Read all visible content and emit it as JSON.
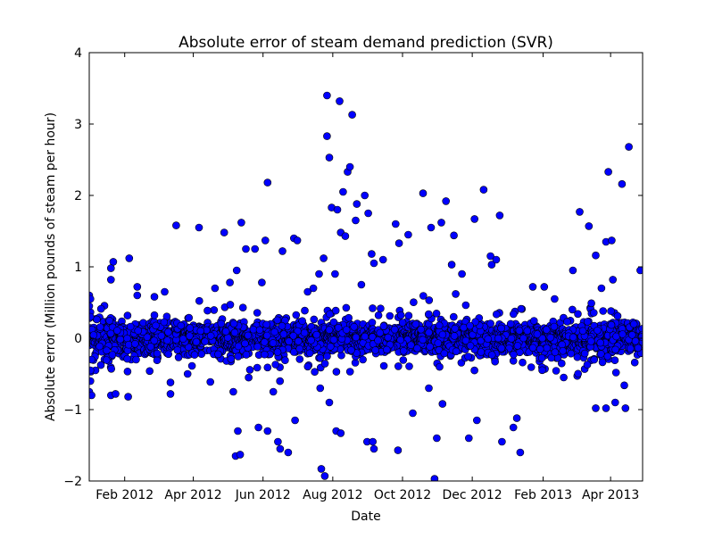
{
  "chart_data": {
    "type": "scatter",
    "title": "Absolute error of steam demand prediction (SVR)",
    "xlabel": "Date",
    "ylabel": "Absolute error (Million pounds of steam per hour)",
    "x_type": "date",
    "xlim": [
      "2012-01-01",
      "2013-04-29"
    ],
    "ylim": [
      -2,
      4
    ],
    "grid": false,
    "legend": "none",
    "marker_color": "#0000ff",
    "marker_edge_color": "#000000",
    "x_ticks": [
      {
        "date": "2012-02-01",
        "label": "Feb 2012"
      },
      {
        "date": "2012-04-01",
        "label": "Apr 2012"
      },
      {
        "date": "2012-06-01",
        "label": "Jun 2012"
      },
      {
        "date": "2012-08-01",
        "label": "Aug 2012"
      },
      {
        "date": "2012-10-01",
        "label": "Oct 2012"
      },
      {
        "date": "2012-12-01",
        "label": "Dec 2012"
      },
      {
        "date": "2013-02-01",
        "label": "Feb 2013"
      },
      {
        "date": "2013-04-01",
        "label": "Apr 2013"
      }
    ],
    "y_ticks": [
      {
        "value": -2,
        "label": "−2"
      },
      {
        "value": -1,
        "label": "−1"
      },
      {
        "value": 0,
        "label": "0"
      },
      {
        "value": 1,
        "label": "1"
      },
      {
        "value": 2,
        "label": "2"
      },
      {
        "value": 3,
        "label": "3"
      },
      {
        "value": 4,
        "label": "4"
      }
    ],
    "series": [
      {
        "points": [
          [
            "2012-01-01",
            0.6
          ],
          [
            "2012-01-01",
            0.45
          ],
          [
            "2012-01-02",
            0.3
          ],
          [
            "2012-01-01",
            -0.75
          ],
          [
            "2012-01-02",
            -0.6
          ],
          [
            "2012-01-02",
            -0.45
          ],
          [
            "2012-01-03",
            -0.3
          ],
          [
            "2012-01-02",
            0.55
          ],
          [
            "2012-01-03",
            -0.8
          ],
          [
            "2012-01-22",
            1.07
          ],
          [
            "2012-01-20",
            0.98
          ],
          [
            "2012-01-20",
            0.82
          ],
          [
            "2012-01-20",
            -0.8
          ],
          [
            "2012-01-24",
            -0.78
          ],
          [
            "2012-02-05",
            1.12
          ],
          [
            "2012-02-04",
            -0.82
          ],
          [
            "2012-02-12",
            0.6
          ],
          [
            "2012-02-12",
            0.72
          ],
          [
            "2012-02-27",
            0.58
          ],
          [
            "2012-03-07",
            0.65
          ],
          [
            "2012-03-12",
            -0.78
          ],
          [
            "2012-03-12",
            -0.62
          ],
          [
            "2012-03-17",
            1.58
          ],
          [
            "2012-03-27",
            -0.5
          ],
          [
            "2012-04-06",
            1.55
          ],
          [
            "2012-04-20",
            0.7
          ],
          [
            "2012-04-28",
            1.48
          ],
          [
            "2012-05-03",
            0.78
          ],
          [
            "2012-05-06",
            -0.75
          ],
          [
            "2012-05-08",
            -1.65
          ],
          [
            "2012-05-09",
            0.95
          ],
          [
            "2012-05-10",
            -1.3
          ],
          [
            "2012-05-12",
            -1.63
          ],
          [
            "2012-05-13",
            1.62
          ],
          [
            "2012-05-17",
            1.25
          ],
          [
            "2012-05-25",
            1.25
          ],
          [
            "2012-05-28",
            -1.25
          ],
          [
            "2012-05-31",
            0.78
          ],
          [
            "2012-06-03",
            1.37
          ],
          [
            "2012-06-05",
            2.18
          ],
          [
            "2012-06-05",
            -1.3
          ],
          [
            "2012-06-10",
            -0.75
          ],
          [
            "2012-06-14",
            -1.45
          ],
          [
            "2012-06-16",
            -1.55
          ],
          [
            "2012-06-18",
            1.22
          ],
          [
            "2012-06-23",
            -1.6
          ],
          [
            "2012-06-28",
            1.4
          ],
          [
            "2012-07-01",
            1.37
          ],
          [
            "2012-06-29",
            -1.15
          ],
          [
            "2012-07-10",
            0.65
          ],
          [
            "2012-07-15",
            0.7
          ],
          [
            "2012-07-20",
            0.9
          ],
          [
            "2012-07-21",
            -0.7
          ],
          [
            "2012-07-24",
            1.12
          ],
          [
            "2012-07-22",
            -1.83
          ],
          [
            "2012-07-25",
            -1.93
          ],
          [
            "2012-07-27",
            3.4
          ],
          [
            "2012-07-27",
            2.83
          ],
          [
            "2012-07-29",
            2.53
          ],
          [
            "2012-07-31",
            1.83
          ],
          [
            "2012-07-29",
            -0.9
          ],
          [
            "2012-08-03",
            0.9
          ],
          [
            "2012-08-04",
            -1.3
          ],
          [
            "2012-08-05",
            1.8
          ],
          [
            "2012-08-07",
            3.32
          ],
          [
            "2012-08-08",
            1.48
          ],
          [
            "2012-08-08",
            -1.33
          ],
          [
            "2012-08-10",
            2.05
          ],
          [
            "2012-08-12",
            1.43
          ],
          [
            "2012-08-14",
            2.33
          ],
          [
            "2012-08-16",
            2.4
          ],
          [
            "2012-08-18",
            3.13
          ],
          [
            "2012-08-21",
            1.65
          ],
          [
            "2012-08-22",
            1.88
          ],
          [
            "2012-08-26",
            0.75
          ],
          [
            "2012-08-29",
            2.0
          ],
          [
            "2012-09-01",
            1.75
          ],
          [
            "2012-08-31",
            -1.45
          ],
          [
            "2012-09-04",
            1.18
          ],
          [
            "2012-09-05",
            -1.45
          ],
          [
            "2012-09-06",
            -1.55
          ],
          [
            "2012-09-06",
            1.05
          ],
          [
            "2012-09-14",
            1.1
          ],
          [
            "2012-09-25",
            1.6
          ],
          [
            "2012-09-27",
            -1.57
          ],
          [
            "2012-09-28",
            1.33
          ],
          [
            "2012-10-06",
            1.45
          ],
          [
            "2012-10-10",
            -1.05
          ],
          [
            "2012-10-19",
            2.03
          ],
          [
            "2012-10-24",
            -0.7
          ],
          [
            "2012-10-26",
            1.55
          ],
          [
            "2012-10-29",
            -1.97
          ],
          [
            "2012-10-31",
            -1.4
          ],
          [
            "2012-11-04",
            1.62
          ],
          [
            "2012-11-05",
            -0.92
          ],
          [
            "2012-11-08",
            1.92
          ],
          [
            "2012-11-13",
            1.03
          ],
          [
            "2012-11-15",
            1.44
          ],
          [
            "2012-11-22",
            0.9
          ],
          [
            "2012-11-28",
            -1.4
          ],
          [
            "2012-12-03",
            1.67
          ],
          [
            "2012-12-05",
            -1.15
          ],
          [
            "2012-12-11",
            2.08
          ],
          [
            "2012-12-17",
            1.15
          ],
          [
            "2012-12-18",
            1.03
          ],
          [
            "2012-12-22",
            1.1
          ],
          [
            "2012-12-25",
            1.72
          ],
          [
            "2012-12-27",
            -1.45
          ],
          [
            "2013-01-06",
            -1.25
          ],
          [
            "2013-01-09",
            -1.12
          ],
          [
            "2013-01-12",
            -1.6
          ],
          [
            "2013-01-23",
            0.72
          ],
          [
            "2013-02-02",
            0.72
          ],
          [
            "2013-02-11",
            0.55
          ],
          [
            "2013-02-19",
            -0.55
          ],
          [
            "2013-02-27",
            0.95
          ],
          [
            "2013-03-05",
            1.77
          ],
          [
            "2013-03-13",
            1.57
          ],
          [
            "2013-03-19",
            -0.98
          ],
          [
            "2013-03-19",
            1.16
          ],
          [
            "2013-03-24",
            0.7
          ],
          [
            "2013-03-28",
            1.35
          ],
          [
            "2013-03-28",
            -0.98
          ],
          [
            "2013-03-30",
            2.33
          ],
          [
            "2013-04-02",
            1.37
          ],
          [
            "2013-04-05",
            -0.9
          ],
          [
            "2013-04-11",
            2.16
          ],
          [
            "2013-04-14",
            -0.98
          ],
          [
            "2013-04-17",
            2.68
          ],
          [
            "2013-04-13",
            -0.66
          ],
          [
            "2013-04-27",
            0.95
          ],
          [
            "2013-04-03",
            0.82
          ]
        ]
      }
    ]
  }
}
